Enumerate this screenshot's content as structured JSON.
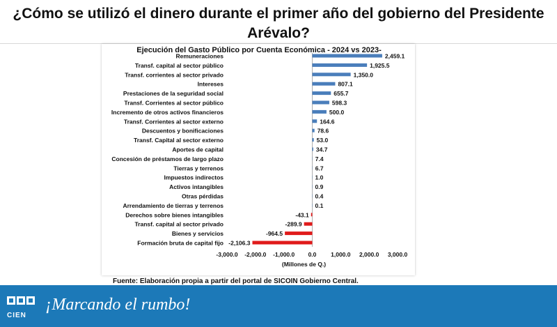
{
  "headline": {
    "line1": "¿Cómo se utilizó el dinero durante el primer año del gobierno del Presidente",
    "line2": "Arévalo?"
  },
  "source_note": "Fuente: Elaboración propia a partir del portal de SICOIN Gobierno Central.",
  "footer": {
    "logo_text": "CIEN",
    "tagline": "¡Marcando el rumbo!"
  },
  "colors": {
    "positive_bar": "#4a7ebb",
    "negative_bar": "#e01b1b",
    "footer_bg": "#1c79b8"
  },
  "chart_data": {
    "type": "bar",
    "orientation": "horizontal",
    "title": "Ejecución del Gasto Público por Cuenta Económica - 2024 vs 2023-",
    "xlabel": "(Millones de Q.)",
    "ylabel": "",
    "xlim": [
      -3000,
      3000
    ],
    "xticks": [
      -3000,
      -2000,
      -1000,
      0,
      1000,
      2000,
      3000
    ],
    "xtick_labels": [
      "-3,000.0",
      "-2,000.0",
      "-1,000.0",
      "0.0",
      "1,000.0",
      "2,000.0",
      "3,000.0"
    ],
    "grid": false,
    "categories": [
      "Remuneraciones",
      "Transf. capital al sector público",
      "Transf. corrientes al sector privado",
      "Intereses",
      "Prestaciones de la seguridad social",
      "Transf. Corrientes al sector público",
      "Incremento de otros activos financieros",
      "Transf. Corrientes al sector externo",
      "Descuentos y bonificaciones",
      "Transf. Capital al sector externo",
      "Aportes de capital",
      "Concesión de préstamos de largo plazo",
      "Tierras y terrenos",
      "Impuestos indirectos",
      "Activos intangibles",
      "Otras pérdidas",
      "Arrendamiento de tierras y terrenos",
      "Derechos sobre bienes intangibles",
      "Transf. capital al sector privado",
      "Bienes y servicios",
      "Formación bruta de capital fijo"
    ],
    "values": [
      2459.1,
      1925.5,
      1350.0,
      807.1,
      655.7,
      598.3,
      500.0,
      164.6,
      78.6,
      53.0,
      34.7,
      7.4,
      6.7,
      1.0,
      0.9,
      0.4,
      0.1,
      -43.1,
      -289.9,
      -964.5,
      -2106.3
    ],
    "value_labels": [
      "2,459.1",
      "1,925.5",
      "1,350.0",
      "807.1",
      "655.7",
      "598.3",
      "500.0",
      "164.6",
      "78.6",
      "53.0",
      "34.7",
      "7.4",
      "6.7",
      "1.0",
      "0.9",
      "0.4",
      "0.1",
      "-43.1",
      "-289.9",
      "-964.5",
      "-2,106.3"
    ]
  }
}
